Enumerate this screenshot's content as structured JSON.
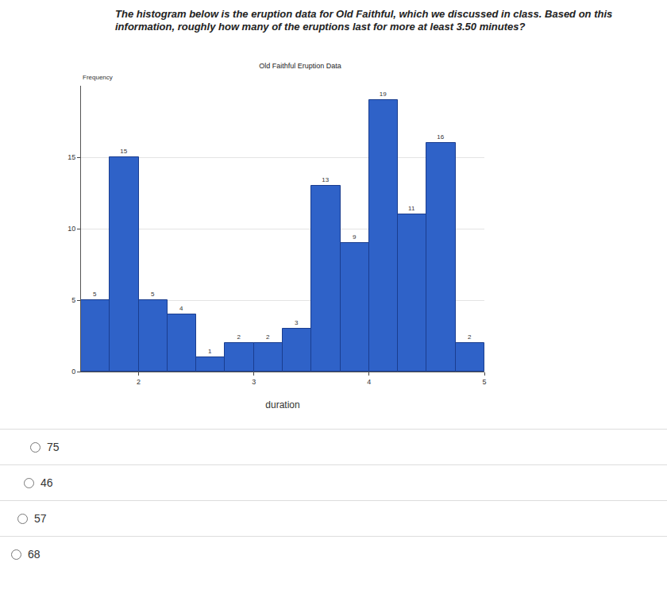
{
  "question": "The histogram below is the eruption data for Old Faithful, which we discussed in class. Based on this information, roughly how many of the eruptions last for more at least 3.50 minutes?",
  "chart_data": {
    "type": "histogram",
    "title": "Old Faithful Eruption Data",
    "x_label": "duration",
    "y_label": "Frequency",
    "bins": [
      1.5,
      1.75,
      2.0,
      2.25,
      2.5,
      2.75,
      3.0,
      3.25,
      3.5,
      3.75,
      4.0,
      4.25,
      4.5,
      4.75,
      5.0
    ],
    "values": [
      5,
      15,
      5,
      4,
      1,
      2,
      2,
      3,
      13,
      9,
      19,
      11,
      16,
      2
    ],
    "color": "#2f62c8",
    "xlim": [
      1.5,
      5
    ],
    "xticks": [
      2,
      3,
      4,
      5
    ],
    "ylim": [
      0,
      20
    ],
    "yticks": [
      0,
      5,
      10,
      15
    ],
    "grid": true,
    "data_labels": true
  },
  "options": [
    "75",
    "46",
    "57",
    "68"
  ]
}
